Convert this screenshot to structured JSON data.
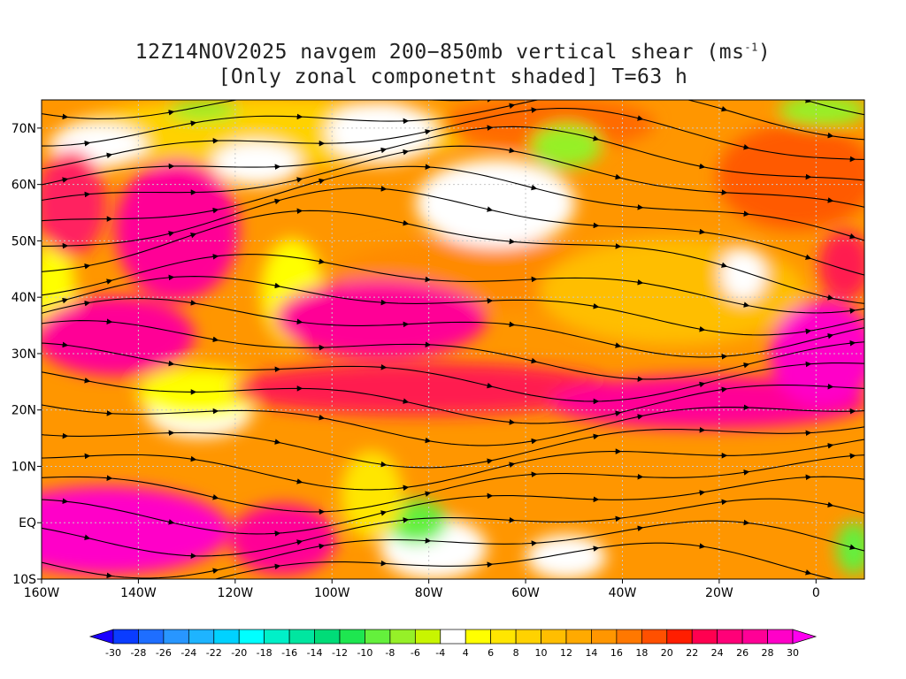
{
  "title": {
    "line1_prefix": "12Z14NOV2025 navgem 200−850mb vertical shear (ms",
    "line1_sup": "-1",
    "line1_suffix": ")",
    "line2": "[Only zonal componetnt shaded] T=63 h"
  },
  "map": {
    "lon_range": [
      -160,
      10
    ],
    "lat_range": [
      -10,
      75
    ],
    "x_ticks": [
      {
        "lon": -160,
        "label": "160W"
      },
      {
        "lon": -140,
        "label": "140W"
      },
      {
        "lon": -120,
        "label": "120W"
      },
      {
        "lon": -100,
        "label": "100W"
      },
      {
        "lon": -80,
        "label": "80W"
      },
      {
        "lon": -60,
        "label": "60W"
      },
      {
        "lon": -40,
        "label": "40W"
      },
      {
        "lon": -20,
        "label": "20W"
      },
      {
        "lon": 0,
        "label": "0"
      }
    ],
    "y_ticks": [
      {
        "lat": 70,
        "label": "70N"
      },
      {
        "lat": 60,
        "label": "60N"
      },
      {
        "lat": 50,
        "label": "50N"
      },
      {
        "lat": 40,
        "label": "40N"
      },
      {
        "lat": 30,
        "label": "30N"
      },
      {
        "lat": 20,
        "label": "20N"
      },
      {
        "lat": 10,
        "label": "10N"
      },
      {
        "lat": 0,
        "label": "EQ"
      },
      {
        "lat": -10,
        "label": "10S"
      }
    ],
    "grid": "dotted"
  },
  "colorbar": {
    "labels": [
      "-30",
      "-28",
      "-26",
      "-24",
      "-22",
      "-20",
      "-18",
      "-16",
      "-14",
      "-12",
      "-10",
      "-8",
      "-6",
      "-4",
      "4",
      "6",
      "8",
      "10",
      "12",
      "14",
      "16",
      "18",
      "20",
      "22",
      "24",
      "26",
      "28",
      "30"
    ],
    "colors": [
      "#1a00ff",
      "#0a3cff",
      "#1e6eff",
      "#2896ff",
      "#1eb4ff",
      "#00d2ff",
      "#00ffff",
      "#00f0c8",
      "#00e6a0",
      "#00dc78",
      "#1ee650",
      "#64f03c",
      "#96f028",
      "#c8f500",
      "#ffffff",
      "#ffff00",
      "#ffe600",
      "#ffd200",
      "#ffbe00",
      "#ffaa00",
      "#ff9600",
      "#ff7800",
      "#ff5000",
      "#ff1e00",
      "#ff0050",
      "#ff0078",
      "#ff0096",
      "#ff00c8",
      "#ff00f0"
    ]
  },
  "wind_field": {
    "shaded": "zonal vertical shear component",
    "streamlines": "vertical shear vector"
  }
}
